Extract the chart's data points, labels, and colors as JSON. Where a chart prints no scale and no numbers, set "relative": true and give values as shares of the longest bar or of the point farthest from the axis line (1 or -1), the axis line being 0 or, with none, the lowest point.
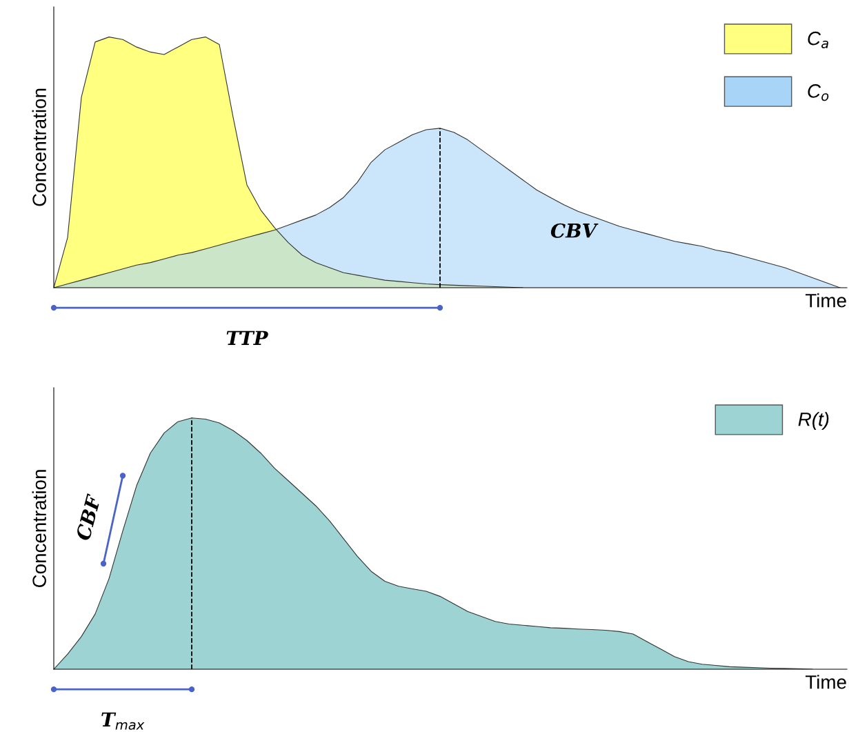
{
  "chart_data": [
    {
      "type": "area",
      "relative": true,
      "xlabel": "Time",
      "ylabel": "Concentration",
      "legend": "top right",
      "categories": [
        null,
        null,
        null,
        null,
        null,
        null,
        null,
        null,
        null,
        null,
        null,
        null,
        null,
        null,
        null,
        null,
        null,
        null,
        null,
        null,
        null,
        null,
        null,
        null,
        null,
        null,
        null,
        null,
        null,
        null,
        null,
        null,
        null,
        null,
        null,
        null,
        null,
        null,
        null,
        null,
        null,
        null,
        null,
        null,
        null,
        null,
        null,
        null,
        null,
        null,
        null,
        null,
        null,
        null,
        null,
        null,
        null,
        null
      ],
      "series": [
        {
          "name": "C$_{a}$",
          "color": "#ffff80",
          "values": [
            0,
            0.2,
            0.76,
            0.98,
            1.0,
            0.99,
            0.96,
            0.94,
            0.93,
            0.96,
            0.99,
            1.0,
            0.97,
            0.68,
            0.41,
            0.31,
            0.24,
            0.18,
            0.13,
            0.1,
            0.08,
            0.06,
            0.05,
            0.04,
            0.03,
            0.025,
            0.02,
            0.015,
            0.012,
            0.01,
            0.008,
            0.006,
            0.004,
            0.002,
            0,
            null,
            null,
            null,
            null,
            null,
            null,
            null,
            null,
            null,
            null,
            null,
            null,
            null,
            null,
            null,
            null,
            null,
            null,
            null,
            null,
            null,
            null,
            null
          ]
        },
        {
          "name": "C$_{o}$",
          "color": "#a8d4f8",
          "values": [
            0,
            0.015,
            0.03,
            0.045,
            0.06,
            0.075,
            0.09,
            0.1,
            0.115,
            0.13,
            0.14,
            0.155,
            0.17,
            0.185,
            0.2,
            0.215,
            0.23,
            0.25,
            0.27,
            0.29,
            0.32,
            0.36,
            0.42,
            0.5,
            0.55,
            0.58,
            0.61,
            0.63,
            0.636,
            0.62,
            0.59,
            0.55,
            0.51,
            0.47,
            0.43,
            0.39,
            0.36,
            0.33,
            0.305,
            0.285,
            0.265,
            0.245,
            0.23,
            0.215,
            0.2,
            0.185,
            0.175,
            0.165,
            0.15,
            0.14,
            0.125,
            0.11,
            0.095,
            0.08,
            0.06,
            0.04,
            0.02,
            0
          ]
        }
      ],
      "annotations": [
        "TTP",
        "CBV"
      ]
    },
    {
      "type": "area",
      "relative": true,
      "xlabel": "Time",
      "ylabel": "Concentration",
      "legend": "top right",
      "categories": [
        null,
        null,
        null,
        null,
        null,
        null,
        null,
        null,
        null,
        null,
        null,
        null,
        null,
        null,
        null,
        null,
        null,
        null,
        null,
        null,
        null,
        null,
        null,
        null,
        null,
        null,
        null,
        null,
        null,
        null,
        null,
        null,
        null,
        null,
        null,
        null,
        null,
        null,
        null,
        null,
        null,
        null,
        null,
        null,
        null,
        null,
        null,
        null,
        null,
        null,
        null,
        null,
        null,
        null,
        null,
        null,
        null,
        null
      ],
      "series": [
        {
          "name": "R(t)",
          "color": "#9dd3d3",
          "values": [
            0,
            0.06,
            0.13,
            0.22,
            0.36,
            0.55,
            0.73,
            0.86,
            0.94,
            0.985,
            1.0,
            0.995,
            0.98,
            0.95,
            0.91,
            0.86,
            0.8,
            0.75,
            0.7,
            0.65,
            0.59,
            0.52,
            0.45,
            0.39,
            0.35,
            0.33,
            0.32,
            0.31,
            0.29,
            0.26,
            0.23,
            0.21,
            0.19,
            0.18,
            0.175,
            0.17,
            0.165,
            0.163,
            0.16,
            0.158,
            0.155,
            0.15,
            0.14,
            0.11,
            0.08,
            0.05,
            0.03,
            0.02,
            0.015,
            0.01,
            0.008,
            0.006,
            0.004,
            0.003,
            0.002,
            0,
            null,
            null
          ]
        }
      ],
      "annotations": [
        "T$_{max}$",
        "CBF"
      ]
    }
  ]
}
